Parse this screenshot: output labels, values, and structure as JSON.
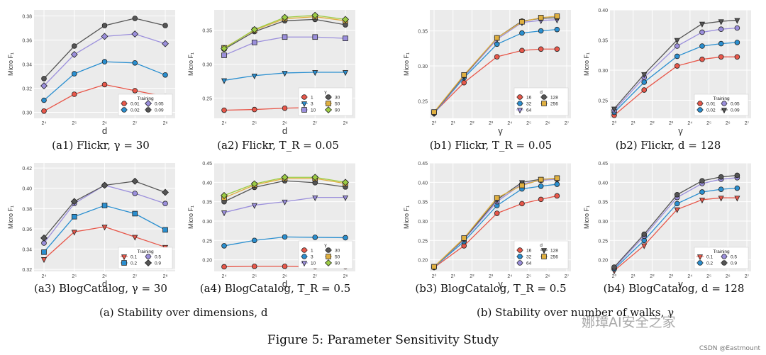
{
  "charts": [
    {
      "id": "a1",
      "type": "line",
      "caption": "(a1) Flickr, γ = 30",
      "xlabel": "d",
      "ylabel": "Micro F₁",
      "categories": [
        "2⁴",
        "2⁵",
        "2⁶",
        "2⁷",
        "2⁸"
      ],
      "ylim": [
        0.295,
        0.385
      ],
      "yticks": [
        0.3,
        0.32,
        0.34,
        0.36,
        0.38
      ],
      "legend": {
        "title": "Training",
        "position": "bottom-right"
      },
      "series": [
        {
          "name": "0.01",
          "color": "#e8574a",
          "marker": "circle",
          "values": [
            0.301,
            0.315,
            0.323,
            0.318,
            0.313
          ]
        },
        {
          "name": "0.02",
          "color": "#2a8fd0",
          "marker": "circle",
          "values": [
            0.31,
            0.332,
            0.342,
            0.341,
            0.331
          ]
        },
        {
          "name": "0.05",
          "color": "#9b8fdc",
          "marker": "diamond",
          "values": [
            0.322,
            0.348,
            0.363,
            0.365,
            0.357
          ]
        },
        {
          "name": "0.09",
          "color": "#555555",
          "marker": "circle",
          "values": [
            0.328,
            0.355,
            0.372,
            0.378,
            0.372
          ]
        }
      ]
    },
    {
      "id": "a2",
      "type": "line",
      "caption": "(a2) Flickr, T_R = 0.05",
      "xlabel": "d",
      "ylabel": "Micro F₁",
      "categories": [
        "2⁴",
        "2⁵",
        "2⁶",
        "2⁷",
        "2⁸"
      ],
      "ylim": [
        0.22,
        0.38
      ],
      "yticks": [
        0.25,
        0.3,
        0.35
      ],
      "legend": {
        "title": "γ",
        "position": "bottom-right"
      },
      "series": [
        {
          "name": "1",
          "color": "#e8574a",
          "marker": "circle",
          "values": [
            0.232,
            0.233,
            0.235,
            0.236,
            0.236
          ]
        },
        {
          "name": "3",
          "color": "#2a8fd0",
          "marker": "triangle",
          "values": [
            0.276,
            0.283,
            0.287,
            0.288,
            0.288
          ]
        },
        {
          "name": "10",
          "color": "#9b8fdc",
          "marker": "square",
          "values": [
            0.313,
            0.332,
            0.34,
            0.34,
            0.338
          ]
        },
        {
          "name": "30",
          "color": "#555555",
          "marker": "circle",
          "values": [
            0.322,
            0.348,
            0.364,
            0.366,
            0.358
          ]
        },
        {
          "name": "50",
          "color": "#e0b040",
          "marker": "square",
          "values": [
            0.324,
            0.35,
            0.367,
            0.37,
            0.364
          ]
        },
        {
          "name": "90",
          "color": "#9ccc44",
          "marker": "diamond",
          "values": [
            0.323,
            0.351,
            0.369,
            0.372,
            0.366
          ]
        }
      ]
    },
    {
      "id": "b1",
      "type": "line",
      "caption": "(b1) Flickr, T_R = 0.05",
      "xlabel": "γ",
      "ylabel": "Micro F₁",
      "categories": [
        "2⁰",
        "2¹",
        "2²",
        "2³",
        "2⁴",
        "2⁵",
        "2⁶",
        "2⁷"
      ],
      "xpos": [
        0,
        1.58,
        3.32,
        4.64,
        5.64,
        6.49
      ],
      "ylim": [
        0.225,
        0.38
      ],
      "yticks": [
        0.25,
        0.3,
        0.35
      ],
      "legend": {
        "title": "d",
        "position": "bottom-right"
      },
      "series": [
        {
          "name": "16",
          "color": "#e8574a",
          "marker": "circle",
          "values": [
            0.233,
            0.276,
            0.313,
            0.322,
            0.324,
            0.324
          ]
        },
        {
          "name": "32",
          "color": "#2a8fd0",
          "marker": "circle",
          "values": [
            0.232,
            0.283,
            0.331,
            0.347,
            0.35,
            0.352
          ]
        },
        {
          "name": "64",
          "color": "#9b8fdc",
          "marker": "triangle",
          "values": [
            0.232,
            0.285,
            0.338,
            0.362,
            0.365,
            0.366
          ]
        },
        {
          "name": "128",
          "color": "#555555",
          "marker": "circle",
          "values": [
            0.233,
            0.286,
            0.34,
            0.364,
            0.368,
            0.369
          ]
        },
        {
          "name": "256",
          "color": "#e0b040",
          "marker": "square",
          "values": [
            0.234,
            0.287,
            0.34,
            0.363,
            0.369,
            0.371
          ]
        }
      ]
    },
    {
      "id": "b2",
      "type": "line",
      "caption": "(b2) Flickr, d = 128",
      "xlabel": "γ",
      "ylabel": "Micro F₁",
      "categories": [
        "2⁰",
        "2¹",
        "2²",
        "2³",
        "2⁴",
        "2⁵",
        "2⁶",
        "2⁷"
      ],
      "xpos": [
        0,
        1.58,
        3.32,
        4.64,
        5.64,
        6.49
      ],
      "ylim": [
        0.22,
        0.4
      ],
      "yticks": [
        0.25,
        0.3,
        0.35,
        0.4
      ],
      "legend": {
        "title": "Training",
        "position": "bottom-right"
      },
      "series": [
        {
          "name": "0.01",
          "color": "#e8574a",
          "marker": "circle",
          "values": [
            0.225,
            0.267,
            0.307,
            0.318,
            0.322,
            0.322
          ]
        },
        {
          "name": "0.02",
          "color": "#2a8fd0",
          "marker": "circle",
          "values": [
            0.23,
            0.28,
            0.323,
            0.34,
            0.344,
            0.346
          ]
        },
        {
          "name": "0.05",
          "color": "#9b8fdc",
          "marker": "circle",
          "values": [
            0.233,
            0.288,
            0.34,
            0.363,
            0.368,
            0.37
          ]
        },
        {
          "name": "0.09",
          "color": "#555555",
          "marker": "triangle",
          "values": [
            0.236,
            0.293,
            0.35,
            0.377,
            0.381,
            0.383
          ]
        }
      ]
    },
    {
      "id": "a3",
      "type": "line",
      "caption": "(a3) BlogCatalog, γ = 30",
      "xlabel": "d",
      "ylabel": "Micro F₁",
      "categories": [
        "2⁴",
        "2⁵",
        "2⁶",
        "2⁷",
        "2⁸"
      ],
      "ylim": [
        0.318,
        0.425
      ],
      "yticks": [
        0.32,
        0.34,
        0.36,
        0.38,
        0.4,
        0.42
      ],
      "legend": {
        "title": "Training",
        "position": "bottom-right"
      },
      "series": [
        {
          "name": "0.1",
          "color": "#e8574a",
          "marker": "triangle",
          "values": [
            0.33,
            0.357,
            0.362,
            0.352,
            0.342
          ]
        },
        {
          "name": "0.2",
          "color": "#2a8fd0",
          "marker": "square",
          "values": [
            0.337,
            0.372,
            0.383,
            0.375,
            0.359
          ]
        },
        {
          "name": "0.5",
          "color": "#9b8fdc",
          "marker": "circle",
          "values": [
            0.346,
            0.385,
            0.403,
            0.395,
            0.385
          ]
        },
        {
          "name": "0.9",
          "color": "#555555",
          "marker": "diamond",
          "values": [
            0.351,
            0.387,
            0.403,
            0.407,
            0.396
          ]
        }
      ]
    },
    {
      "id": "a4",
      "type": "line",
      "caption": "(a4) BlogCatalog, T_R = 0.5",
      "xlabel": "d",
      "ylabel": "Micro F₁",
      "categories": [
        "2⁴",
        "2⁵",
        "2⁶",
        "2⁷",
        "2⁸"
      ],
      "ylim": [
        0.17,
        0.45
      ],
      "yticks": [
        0.2,
        0.25,
        0.3,
        0.35,
        0.4,
        0.45
      ],
      "legend": {
        "title": "γ",
        "position": "bottom-right"
      },
      "series": [
        {
          "name": "1",
          "color": "#e8574a",
          "marker": "circle",
          "values": [
            0.182,
            0.183,
            0.183,
            0.182,
            0.182
          ]
        },
        {
          "name": "3",
          "color": "#2a8fd0",
          "marker": "circle",
          "values": [
            0.236,
            0.25,
            0.259,
            0.258,
            0.257
          ]
        },
        {
          "name": "10",
          "color": "#9b8fdc",
          "marker": "triangle",
          "values": [
            0.322,
            0.341,
            0.35,
            0.361,
            0.361
          ]
        },
        {
          "name": "30",
          "color": "#555555",
          "marker": "circle",
          "values": [
            0.35,
            0.387,
            0.404,
            0.399,
            0.388
          ]
        },
        {
          "name": "50",
          "color": "#e0b040",
          "marker": "square",
          "values": [
            0.36,
            0.393,
            0.41,
            0.41,
            0.397
          ]
        },
        {
          "name": "90",
          "color": "#9ccc44",
          "marker": "diamond",
          "values": [
            0.366,
            0.396,
            0.413,
            0.413,
            0.4
          ]
        }
      ]
    },
    {
      "id": "b3",
      "type": "line",
      "caption": "(b3) BlogCatalog, T_R = 0.5",
      "xlabel": "γ",
      "ylabel": "Micro F₁",
      "categories": [
        "2⁰",
        "2¹",
        "2²",
        "2³",
        "2⁴",
        "2⁵",
        "2⁶",
        "2⁷"
      ],
      "xpos": [
        0,
        1.58,
        3.32,
        4.64,
        5.64,
        6.49
      ],
      "ylim": [
        0.17,
        0.45
      ],
      "yticks": [
        0.2,
        0.25,
        0.3,
        0.35,
        0.4,
        0.45
      ],
      "legend": {
        "title": "d",
        "position": "bottom-right"
      },
      "series": [
        {
          "name": "16",
          "color": "#e8574a",
          "marker": "circle",
          "values": [
            0.18,
            0.236,
            0.32,
            0.345,
            0.356,
            0.365
          ]
        },
        {
          "name": "32",
          "color": "#2a8fd0",
          "marker": "circle",
          "values": [
            0.181,
            0.247,
            0.34,
            0.383,
            0.39,
            0.395
          ]
        },
        {
          "name": "64",
          "color": "#9b8fdc",
          "marker": "circle",
          "values": [
            0.182,
            0.252,
            0.35,
            0.396,
            0.405,
            0.408
          ]
        },
        {
          "name": "128",
          "color": "#555555",
          "marker": "triangle",
          "values": [
            0.182,
            0.254,
            0.355,
            0.4,
            0.408,
            0.41
          ]
        },
        {
          "name": "256",
          "color": "#e0b040",
          "marker": "square",
          "values": [
            0.182,
            0.256,
            0.36,
            0.392,
            0.407,
            0.411
          ]
        }
      ]
    },
    {
      "id": "b4",
      "type": "line",
      "caption": "(b4) BlogCatalog, d = 128",
      "xlabel": "γ",
      "ylabel": "Micro F₁",
      "categories": [
        "2⁰",
        "2¹",
        "2²",
        "2³",
        "2⁴",
        "2⁵",
        "2⁶",
        "2⁷"
      ],
      "xpos": [
        0,
        1.58,
        3.32,
        4.64,
        5.64,
        6.49
      ],
      "ylim": [
        0.17,
        0.45
      ],
      "yticks": [
        0.2,
        0.25,
        0.3,
        0.35,
        0.4,
        0.45
      ],
      "legend": {
        "title": "Training",
        "position": "bottom-right"
      },
      "series": [
        {
          "name": "0.1",
          "color": "#e8574a",
          "marker": "triangle",
          "values": [
            0.172,
            0.237,
            0.33,
            0.355,
            0.36,
            0.36
          ]
        },
        {
          "name": "0.2",
          "color": "#2a8fd0",
          "marker": "circle",
          "values": [
            0.176,
            0.25,
            0.345,
            0.375,
            0.382,
            0.385
          ]
        },
        {
          "name": "0.5",
          "color": "#9b8fdc",
          "marker": "circle",
          "values": [
            0.179,
            0.261,
            0.361,
            0.397,
            0.408,
            0.412
          ]
        },
        {
          "name": "0.9",
          "color": "#555555",
          "marker": "circle",
          "values": [
            0.181,
            0.266,
            0.368,
            0.404,
            0.414,
            0.418
          ]
        }
      ]
    }
  ],
  "group_captions": {
    "a": "(a) Stability over dimensions, d",
    "b": "(b) Stability over number of walks, γ"
  },
  "figure_caption": "Figure 5: Parameter Sensitivity Study",
  "watermark": "娜璋AI安全之家",
  "credit": "CSDN @Eastmount"
}
